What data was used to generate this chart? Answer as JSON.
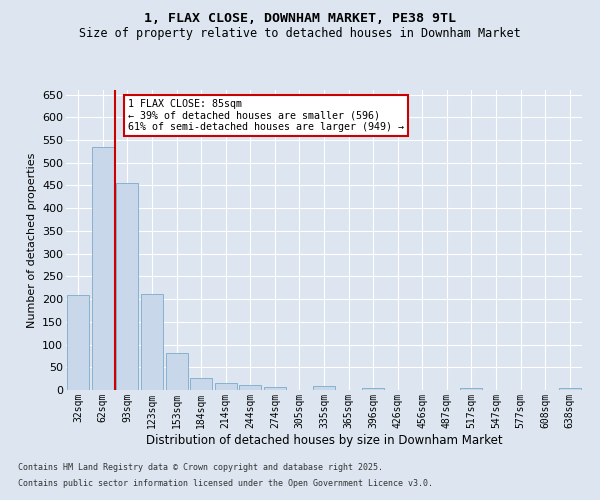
{
  "title": "1, FLAX CLOSE, DOWNHAM MARKET, PE38 9TL",
  "subtitle": "Size of property relative to detached houses in Downham Market",
  "xlabel": "Distribution of detached houses by size in Downham Market",
  "ylabel": "Number of detached properties",
  "footer_line1": "Contains HM Land Registry data © Crown copyright and database right 2025.",
  "footer_line2": "Contains public sector information licensed under the Open Government Licence v3.0.",
  "categories": [
    "32sqm",
    "62sqm",
    "93sqm",
    "123sqm",
    "153sqm",
    "184sqm",
    "214sqm",
    "244sqm",
    "274sqm",
    "305sqm",
    "335sqm",
    "365sqm",
    "396sqm",
    "426sqm",
    "456sqm",
    "487sqm",
    "517sqm",
    "547sqm",
    "577sqm",
    "608sqm",
    "638sqm"
  ],
  "values": [
    208,
    535,
    455,
    212,
    81,
    27,
    15,
    11,
    6,
    0,
    8,
    0,
    5,
    0,
    0,
    0,
    5,
    0,
    0,
    0,
    5
  ],
  "bar_color": "#c8d8ea",
  "bar_edge_color": "#7aaac8",
  "background_color": "#dde6f0",
  "grid_color": "#ffffff",
  "vline_color": "#cc0000",
  "annotation_text": "1 FLAX CLOSE: 85sqm\n← 39% of detached houses are smaller (596)\n61% of semi-detached houses are larger (949) →",
  "annotation_box_color": "#cc0000",
  "ylim": [
    0,
    660
  ],
  "yticks": [
    0,
    50,
    100,
    150,
    200,
    250,
    300,
    350,
    400,
    450,
    500,
    550,
    600,
    650
  ]
}
